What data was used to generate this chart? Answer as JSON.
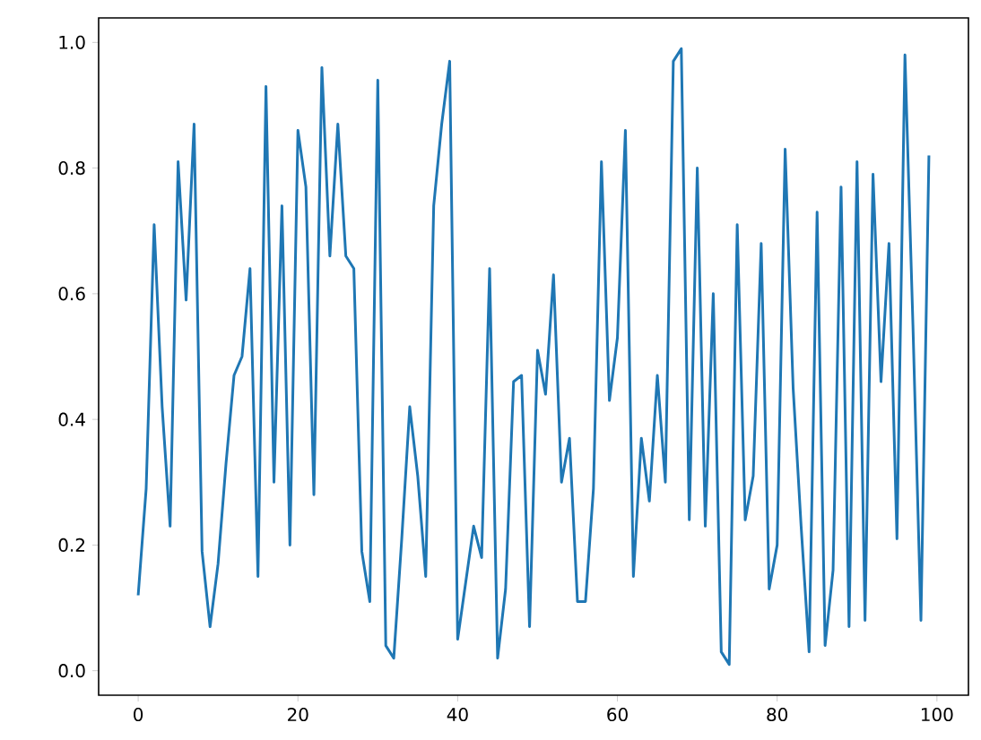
{
  "chart_data": {
    "type": "line",
    "color": "#1f77b4",
    "x": [
      0,
      1,
      2,
      3,
      4,
      5,
      6,
      7,
      8,
      9,
      10,
      11,
      12,
      13,
      14,
      15,
      16,
      17,
      18,
      19,
      20,
      21,
      22,
      23,
      24,
      25,
      26,
      27,
      28,
      29,
      30,
      31,
      32,
      33,
      34,
      35,
      36,
      37,
      38,
      39,
      40,
      41,
      42,
      43,
      44,
      45,
      46,
      47,
      48,
      49,
      50,
      51,
      52,
      53,
      54,
      55,
      56,
      57,
      58,
      59,
      60,
      61,
      62,
      63,
      64,
      65,
      66,
      67,
      68,
      69,
      70,
      71,
      72,
      73,
      74,
      75,
      76,
      77,
      78,
      79,
      80,
      81,
      82,
      83,
      84,
      85,
      86,
      87,
      88,
      89,
      90,
      91,
      92,
      93,
      94,
      95,
      96,
      97,
      98,
      99
    ],
    "values": [
      0.12,
      0.29,
      0.71,
      0.42,
      0.23,
      0.81,
      0.59,
      0.87,
      0.19,
      0.07,
      0.17,
      0.33,
      0.47,
      0.5,
      0.64,
      0.15,
      0.93,
      0.3,
      0.74,
      0.2,
      0.86,
      0.77,
      0.28,
      0.96,
      0.66,
      0.87,
      0.66,
      0.64,
      0.19,
      0.11,
      0.94,
      0.04,
      0.02,
      0.21,
      0.42,
      0.31,
      0.15,
      0.74,
      0.87,
      0.97,
      0.05,
      0.14,
      0.23,
      0.18,
      0.64,
      0.02,
      0.13,
      0.46,
      0.47,
      0.07,
      0.51,
      0.44,
      0.63,
      0.3,
      0.37,
      0.11,
      0.11,
      0.29,
      0.81,
      0.43,
      0.53,
      0.86,
      0.15,
      0.37,
      0.27,
      0.47,
      0.3,
      0.97,
      0.99,
      0.24,
      0.8,
      0.23,
      0.6,
      0.03,
      0.01,
      0.71,
      0.24,
      0.31,
      0.68,
      0.13,
      0.2,
      0.83,
      0.45,
      0.23,
      0.03,
      0.73,
      0.04,
      0.16,
      0.77,
      0.07,
      0.81,
      0.08,
      0.79,
      0.46,
      0.68,
      0.21,
      0.98,
      0.55,
      0.08,
      0.82
    ],
    "xlim": [
      -4.95,
      103.95
    ],
    "ylim": [
      -0.039,
      1.039
    ],
    "xticks": [
      0,
      20,
      40,
      60,
      80,
      100
    ],
    "yticks": [
      {
        "value": 0,
        "label": "0.0"
      },
      {
        "value": 0.2,
        "label": "0.2"
      },
      {
        "value": 0.4,
        "label": "0.4"
      },
      {
        "value": 0.6,
        "label": "0.6"
      },
      {
        "value": 0.8,
        "label": "0.8"
      },
      {
        "value": 1,
        "label": "1.0"
      }
    ]
  }
}
